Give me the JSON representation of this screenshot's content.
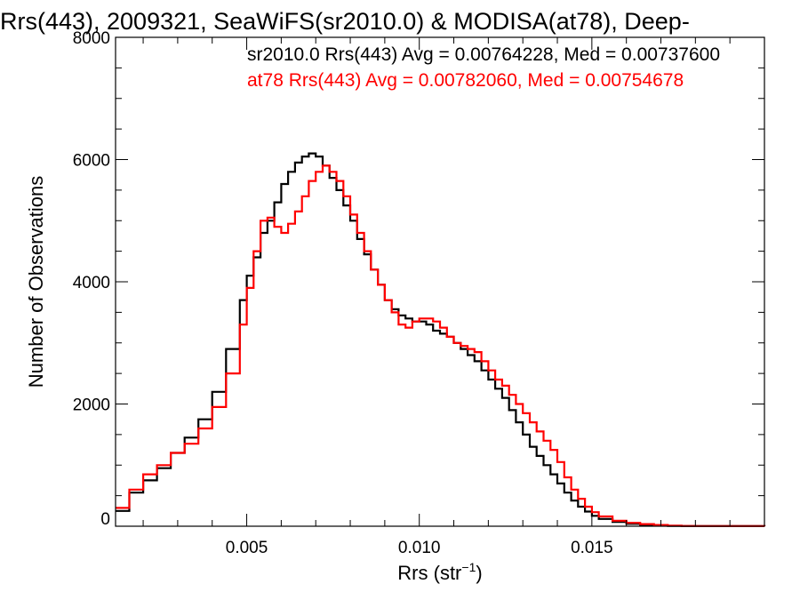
{
  "chart_data": {
    "type": "line",
    "title": "Rrs(443), 2009321, SeaWiFS(sr2010.0) & MODISA(at78), Deep-",
    "xlabel": "Rrs (str",
    "xlabel_sup": "−1",
    "xlabel_close": ")",
    "ylabel": "Number of Observations",
    "xlim": [
      0.0012,
      0.02
    ],
    "ylim": [
      0,
      8000
    ],
    "xticks": [
      0.005,
      0.01,
      0.015
    ],
    "xtick_labels": [
      "0.005",
      "0.010",
      "0.015"
    ],
    "yticks": [
      0,
      2000,
      4000,
      6000,
      8000
    ],
    "ytick_labels": [
      "0",
      "2000",
      "4000",
      "6000",
      "8000"
    ],
    "grid": false,
    "legend_position": "top-right",
    "series": [
      {
        "name": "sr2010.0",
        "color": "#000000",
        "legend": "sr2010.0 Rrs(443) Avg = 0.00764228, Med = 0.00737600",
        "x": [
          0.0012,
          0.0016,
          0.002,
          0.0024,
          0.0028,
          0.0032,
          0.0036,
          0.004,
          0.0044,
          0.0048,
          0.005,
          0.0052,
          0.0054,
          0.0056,
          0.0058,
          0.006,
          0.0062,
          0.0064,
          0.0066,
          0.0068,
          0.007,
          0.0072,
          0.0074,
          0.0076,
          0.0078,
          0.008,
          0.0082,
          0.0084,
          0.0086,
          0.0088,
          0.009,
          0.0092,
          0.0094,
          0.0096,
          0.0098,
          0.01,
          0.0102,
          0.0104,
          0.0106,
          0.0108,
          0.011,
          0.0112,
          0.0114,
          0.0116,
          0.0118,
          0.012,
          0.0122,
          0.0124,
          0.0126,
          0.0128,
          0.013,
          0.0132,
          0.0134,
          0.0136,
          0.0138,
          0.014,
          0.0142,
          0.0144,
          0.0146,
          0.0148,
          0.015,
          0.0152,
          0.0156,
          0.016,
          0.0164,
          0.0168,
          0.0172,
          0.0176,
          0.018,
          0.019,
          0.02
        ],
        "y": [
          250,
          550,
          750,
          950,
          1200,
          1450,
          1750,
          2200,
          2900,
          3700,
          4100,
          4400,
          4800,
          5000,
          5300,
          5600,
          5800,
          5950,
          6050,
          6100,
          6050,
          5900,
          5700,
          5500,
          5250,
          5000,
          4700,
          4450,
          4200,
          3950,
          3700,
          3550,
          3450,
          3400,
          3350,
          3350,
          3300,
          3200,
          3150,
          3100,
          3000,
          2900,
          2800,
          2700,
          2550,
          2400,
          2250,
          2100,
          1900,
          1700,
          1500,
          1300,
          1150,
          1000,
          850,
          700,
          550,
          420,
          320,
          240,
          170,
          120,
          70,
          40,
          20,
          10,
          5,
          3,
          2,
          1,
          0
        ]
      },
      {
        "name": "at78",
        "color": "#ff0000",
        "legend": "at78 Rrs(443) Avg = 0.00782060, Med = 0.00754678",
        "x": [
          0.0012,
          0.0016,
          0.002,
          0.0024,
          0.0028,
          0.0032,
          0.0036,
          0.004,
          0.0044,
          0.0048,
          0.005,
          0.0052,
          0.0054,
          0.0056,
          0.0058,
          0.006,
          0.0062,
          0.0064,
          0.0066,
          0.0068,
          0.007,
          0.0072,
          0.0074,
          0.0076,
          0.0078,
          0.008,
          0.0082,
          0.0084,
          0.0086,
          0.0088,
          0.009,
          0.0092,
          0.0094,
          0.0096,
          0.0098,
          0.01,
          0.0102,
          0.0104,
          0.0106,
          0.0108,
          0.011,
          0.0112,
          0.0114,
          0.0116,
          0.0118,
          0.012,
          0.0122,
          0.0124,
          0.0126,
          0.0128,
          0.013,
          0.0132,
          0.0134,
          0.0136,
          0.0138,
          0.014,
          0.0142,
          0.0144,
          0.0146,
          0.0148,
          0.015,
          0.0152,
          0.0156,
          0.016,
          0.0164,
          0.0168,
          0.0172,
          0.0176,
          0.018,
          0.019,
          0.02
        ],
        "y": [
          300,
          600,
          850,
          1000,
          1200,
          1350,
          1600,
          1950,
          2500,
          3300,
          3900,
          4500,
          5000,
          5050,
          4900,
          4800,
          4950,
          5150,
          5400,
          5650,
          5800,
          5900,
          5800,
          5650,
          5400,
          5100,
          4800,
          4500,
          4200,
          3950,
          3700,
          3500,
          3300,
          3250,
          3350,
          3400,
          3400,
          3350,
          3250,
          3100,
          3000,
          2950,
          2900,
          2850,
          2700,
          2550,
          2400,
          2300,
          2150,
          2000,
          1850,
          1700,
          1550,
          1400,
          1250,
          1050,
          800,
          600,
          450,
          320,
          230,
          160,
          90,
          55,
          35,
          20,
          10,
          5,
          3,
          1,
          0
        ]
      }
    ]
  }
}
